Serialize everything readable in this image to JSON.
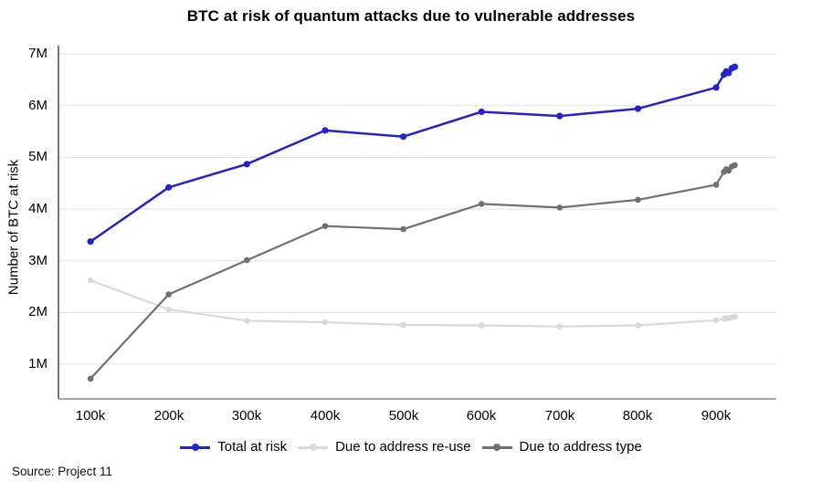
{
  "title": "BTC at risk of quantum attacks due to vulnerable addresses",
  "source": "Source: Project 11",
  "chart_data": {
    "type": "line",
    "title": "BTC at risk of quantum attacks due to vulnerable addresses",
    "xlabel": "",
    "ylabel": "Number of BTC at risk",
    "grid": "horizontal",
    "legend_position": "bottom",
    "xlim": [
      59000,
      977000
    ],
    "ylim": [
      330000,
      7160000
    ],
    "x_ticks": [
      "100k",
      "200k",
      "300k",
      "400k",
      "500k",
      "600k",
      "700k",
      "800k",
      "900k"
    ],
    "x_tick_values": [
      100000,
      200000,
      300000,
      400000,
      500000,
      600000,
      700000,
      800000,
      900000
    ],
    "y_ticks": [
      "1M",
      "2M",
      "3M",
      "4M",
      "5M",
      "6M",
      "7M"
    ],
    "y_tick_values": [
      1000000,
      2000000,
      3000000,
      4000000,
      5000000,
      6000000,
      7000000
    ],
    "x": [
      100000,
      200000,
      300000,
      400000,
      500000,
      600000,
      700000,
      800000,
      900000,
      910000,
      913000,
      916000,
      920000,
      924000
    ],
    "series": [
      {
        "name": "Due to address re-use",
        "color": "#d9d9d9",
        "line_width": 2.2,
        "marker_radius": 3.3,
        "values": [
          2620000,
          2060000,
          1840000,
          1810000,
          1760000,
          1750000,
          1730000,
          1750000,
          1850000,
          1880000,
          1890000,
          1890000,
          1910000,
          1920000
        ]
      },
      {
        "name": "Due to address type",
        "color": "#707070",
        "line_width": 2.2,
        "marker_radius": 3.3,
        "values": [
          720000,
          2350000,
          3010000,
          3670000,
          3610000,
          4100000,
          4030000,
          4180000,
          4470000,
          4720000,
          4770000,
          4740000,
          4820000,
          4850000
        ]
      },
      {
        "name": "Total at risk",
        "color": "#2323cd",
        "line_width": 2.5,
        "marker_radius": 3.6,
        "values": [
          3370000,
          4420000,
          4870000,
          5520000,
          5400000,
          5880000,
          5800000,
          5940000,
          6350000,
          6600000,
          6660000,
          6630000,
          6720000,
          6750000
        ]
      }
    ],
    "legend_order": [
      "Total at risk",
      "Due to address re-use",
      "Due to address type"
    ],
    "colors": {
      "grid": "#e0e0e0",
      "axis_left": "#3c3c3c",
      "axis_bottom": "#8a8a8a",
      "text": "#000000"
    }
  }
}
